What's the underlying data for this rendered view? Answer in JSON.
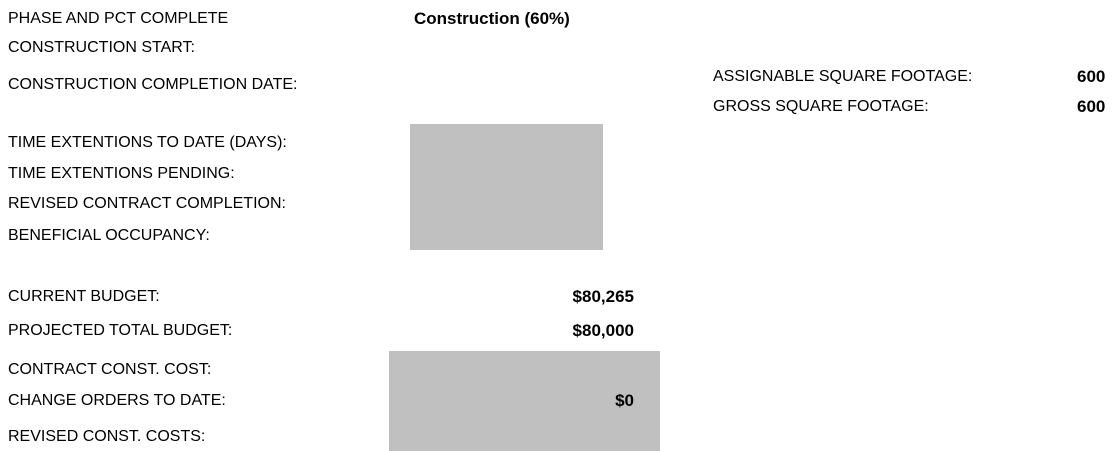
{
  "phase": {
    "label": "PHASE AND PCT COMPLETE",
    "value": "Construction  (60%)"
  },
  "schedule": [
    {
      "label": "CONSTRUCTION START:"
    },
    {
      "label": "CONSTRUCTION COMPLETION DATE:"
    }
  ],
  "extensions": [
    {
      "label": "TIME EXTENTIONS TO DATE (DAYS):"
    },
    {
      "label": "TIME EXTENTIONS PENDING:"
    },
    {
      "label": "REVISED CONTRACT COMPLETION:"
    },
    {
      "label": "BENEFICIAL OCCUPANCY:"
    }
  ],
  "budget": [
    {
      "label": "CURRENT BUDGET:",
      "value": "$80,265"
    },
    {
      "label": "PROJECTED TOTAL BUDGET:",
      "value": "$80,000"
    },
    {
      "label": "CONTRACT CONST. COST:"
    },
    {
      "label": "CHANGE ORDERS TO DATE:",
      "value": "$0"
    },
    {
      "label": "REVISED CONST. COSTS:"
    }
  ],
  "footage": [
    {
      "label": "ASSIGNABLE SQUARE FOOTAGE:",
      "value": "600"
    },
    {
      "label": "GROSS SQUARE FOOTAGE:",
      "value": "600"
    }
  ]
}
